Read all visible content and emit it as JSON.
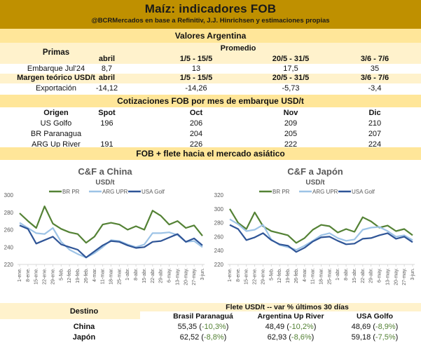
{
  "header": {
    "title": "Maíz: indicadores FOB",
    "subtitle": "@BCRMercados en base a Refinitiv, J.J. Hinrichsen y estimaciones propias"
  },
  "valores_argentina": {
    "title": "Valores Argentina",
    "promedio_label": "Promedio",
    "primas_label": "Primas",
    "periods": [
      "abril",
      "1/5 - 15/5",
      "20/5 - 31/5",
      "3/6 - 7/6"
    ],
    "embarque_row": {
      "label": "Embarque Jul'24",
      "values": [
        "8,7",
        "13",
        "17,5",
        "35"
      ]
    },
    "margen_label": "Margen teórico USD/t",
    "exportacion_row": {
      "label": "Exportación",
      "values": [
        "-14,12",
        "-14,26",
        "-5,73",
        "-3,4"
      ]
    }
  },
  "cotizaciones": {
    "title": "Cotizaciones FOB por mes de embarque USD/t",
    "headers": [
      "Origen",
      "Spot",
      "Oct",
      "Nov",
      "Dic"
    ],
    "rows": [
      {
        "origen": "US Golfo",
        "spot": "196",
        "oct": "206",
        "nov": "209",
        "dic": "210"
      },
      {
        "origen": "BR Paranagua",
        "spot": "",
        "oct": "204",
        "nov": "205",
        "dic": "207"
      },
      {
        "origen": "ARG Up River",
        "spot": "191",
        "oct": "226",
        "nov": "222",
        "dic": "224"
      }
    ]
  },
  "fob_flete_title": "FOB + flete hacia el mercado asiático",
  "chart_data": [
    {
      "type": "line",
      "title": "C&F a China",
      "subtitle": "USD/t",
      "ylabel": "USD/t",
      "ylim": [
        220,
        300
      ],
      "yticks": [
        220,
        240,
        260,
        280,
        300
      ],
      "legend": "top",
      "grid": false,
      "x": [
        "1-ene.",
        "8-ene.",
        "15-ene.",
        "22-ene.",
        "29-ene.",
        "5-feb.",
        "12-feb.",
        "19-feb.",
        "26-feb.",
        "4-mar.",
        "11-mar.",
        "18-mar.",
        "25-mar.",
        "1-abr.",
        "8-abr.",
        "15-abr.",
        "22-abr.",
        "29-abr.",
        "6-may.",
        "13-may.",
        "20-may.",
        "27-may.",
        "3-jun."
      ],
      "series": [
        {
          "name": "BR PR",
          "color": "#548235",
          "values": [
            279,
            270,
            262,
            287,
            267,
            261,
            257,
            255,
            245,
            252,
            266,
            268,
            266,
            260,
            264,
            260,
            282,
            276,
            266,
            270,
            262,
            265,
            253
          ]
        },
        {
          "name": "ARG UPR",
          "color": "#9dc3e6",
          "values": [
            268,
            262,
            256,
            255,
            262,
            246,
            237,
            232,
            228,
            233,
            240,
            248,
            247,
            243,
            240,
            243,
            256,
            256,
            257,
            254,
            246,
            247,
            240
          ]
        },
        {
          "name": "USA Golf",
          "color": "#2f5597",
          "values": [
            265,
            261,
            244,
            248,
            252,
            243,
            240,
            237,
            228,
            235,
            242,
            247,
            246,
            242,
            239,
            240,
            246,
            247,
            251,
            255,
            246,
            250,
            242
          ]
        }
      ]
    },
    {
      "type": "line",
      "title": "C&F a Japón",
      "subtitle": "USD/t",
      "ylabel": "USD/t",
      "ylim": [
        220,
        320
      ],
      "yticks": [
        220,
        240,
        260,
        280,
        300,
        320
      ],
      "legend": "top",
      "grid": false,
      "x": [
        "1-ene.",
        "8-ene.",
        "15-ene.",
        "22-ene.",
        "29-ene.",
        "5-feb.",
        "12-feb.",
        "19-feb.",
        "26-feb.",
        "4-mar.",
        "11-mar.",
        "18-mar.",
        "25-mar.",
        "1-abr.",
        "8-abr.",
        "15-abr.",
        "22-abr.",
        "29-abr.",
        "6-may.",
        "13-may.",
        "20-may.",
        "27-may.",
        "3-jun."
      ],
      "series": [
        {
          "name": "BR PR",
          "color": "#548235",
          "values": [
            300,
            280,
            271,
            295,
            275,
            268,
            265,
            262,
            251,
            258,
            270,
            277,
            275,
            266,
            271,
            267,
            288,
            282,
            273,
            276,
            268,
            271,
            262
          ]
        },
        {
          "name": "ARG UPR",
          "color": "#9dc3e6",
          "values": [
            285,
            278,
            268,
            270,
            277,
            256,
            248,
            245,
            241,
            247,
            254,
            262,
            265,
            258,
            254,
            256,
            270,
            273,
            274,
            268,
            260,
            262,
            255
          ]
        },
        {
          "name": "USA Golf",
          "color": "#2f5597",
          "values": [
            277,
            271,
            255,
            259,
            265,
            255,
            249,
            247,
            238,
            244,
            253,
            259,
            260,
            254,
            249,
            250,
            257,
            258,
            262,
            265,
            257,
            260,
            252
          ]
        }
      ]
    }
  ],
  "flete": {
    "destino_label": "Destino",
    "title": "Flete USD/t -- var % últimos 30 días",
    "columns": [
      "Brasil Paranaguá",
      "Argentina Up River",
      "USA Golfo"
    ],
    "rows": [
      {
        "destino": "China",
        "cells": [
          {
            "value": "55,35",
            "var": "-10,3%"
          },
          {
            "value": "48,49",
            "var": "-10,2%"
          },
          {
            "value": "48,69",
            "var": "-8,9%"
          }
        ]
      },
      {
        "destino": "Japón",
        "cells": [
          {
            "value": "62,52",
            "var": "-8,8%"
          },
          {
            "value": "62,93",
            "var": "-8,6%"
          },
          {
            "value": "59,18",
            "var": "-7,5%"
          }
        ]
      }
    ],
    "var_color": "#548235"
  }
}
